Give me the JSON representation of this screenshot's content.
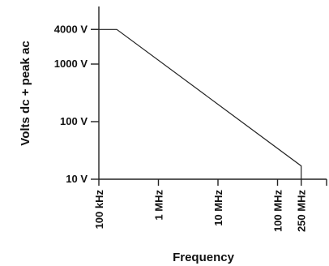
{
  "chart_data": {
    "type": "line",
    "xlabel": "Frequency",
    "ylabel": "Volts dc + peak ac",
    "x_scale": "log",
    "y_scale": "log",
    "xlim": [
      100000,
      1000000000
    ],
    "ylim": [
      10,
      10000
    ],
    "x_ticks": [
      {
        "value": 100000,
        "label": "100 kHz"
      },
      {
        "value": 1000000,
        "label": "1 MHz"
      },
      {
        "value": 10000000,
        "label": "10 MHz"
      },
      {
        "value": 100000000,
        "label": "100 MHz"
      },
      {
        "value": 250000000,
        "label": "250 MHz"
      }
    ],
    "y_ticks": [
      {
        "value": 10,
        "label": "10 V"
      },
      {
        "value": 100,
        "label": "100 V"
      },
      {
        "value": 1000,
        "label": "1000 V"
      },
      {
        "value": 4000,
        "label": "4000 V"
      }
    ],
    "series": [
      {
        "x": [
          100000,
          200000,
          250000000,
          250000000
        ],
        "y": [
          4000,
          4000,
          17,
          10
        ],
        "color": "#222222"
      }
    ],
    "grid": false,
    "legend": "none"
  }
}
